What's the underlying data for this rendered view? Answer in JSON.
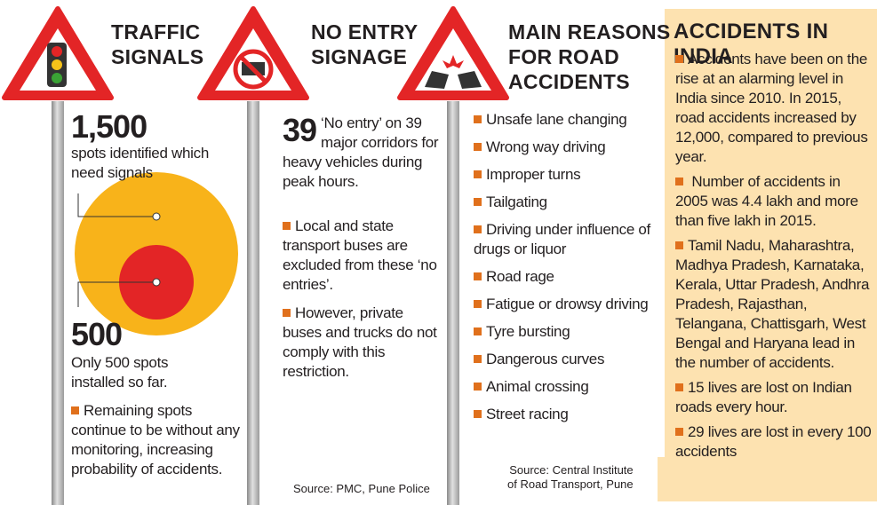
{
  "traffic": {
    "heading": [
      "TRAFFIC",
      "SIGNALS"
    ],
    "stat1": {
      "number": "1,500",
      "text": "spots identified which need signals"
    },
    "stat2": {
      "number": "500",
      "text": "Only 500 spots installed so far."
    },
    "bullets": [
      "Remaining spots continue to be without any monitoring, increasing probability of accidents."
    ]
  },
  "no_entry": {
    "heading": [
      "NO ENTRY",
      "SIGNAGE"
    ],
    "stat": {
      "number": "39",
      "text": "‘No entry’ on 39 major corridors for heavy vehicles during peak hours."
    },
    "bullets": [
      "Local and state transport buses are excluded from these ‘no entries’.",
      "However, private buses and trucks do not comply with this restriction."
    ],
    "source": "Source: PMC, Pune Police"
  },
  "reasons": {
    "heading": [
      "MAIN REASONS",
      "FOR ROAD",
      "ACCIDENTS"
    ],
    "items": [
      "Unsafe lane changing",
      "Wrong way driving",
      "Improper turns",
      "Tailgating",
      "Driving under influence of drugs or liquor",
      "Road rage",
      "Fatigue or drowsy driving",
      "Tyre bursting",
      "Dangerous curves",
      "Animal crossing",
      "Street racing"
    ],
    "source": [
      "Source: Central Institute",
      "of Road Transport, Pune"
    ]
  },
  "accidents": {
    "heading": "ACCIDENTS IN INDIA",
    "bullets": [
      "Accidents have been on the rise at an alarming level in India since 2010. In 2015, road accidents increased by 12,000, compared to previous year.",
      " Number of accidents in 2005 was 4.4 lakh and more than five lakh in 2015.",
      "Tamil Nadu, Maharashtra, Madhya Pradesh, Karnataka, Kerala, Uttar Pradesh, Andhra Pradesh, Rajasthan, Telangana, Chattisgarh, West Bengal and Haryana lead in the number of accidents.",
      "15 lives are lost on Indian roads every hour.",
      "29 lives are lost in every 100 accidents"
    ]
  }
}
